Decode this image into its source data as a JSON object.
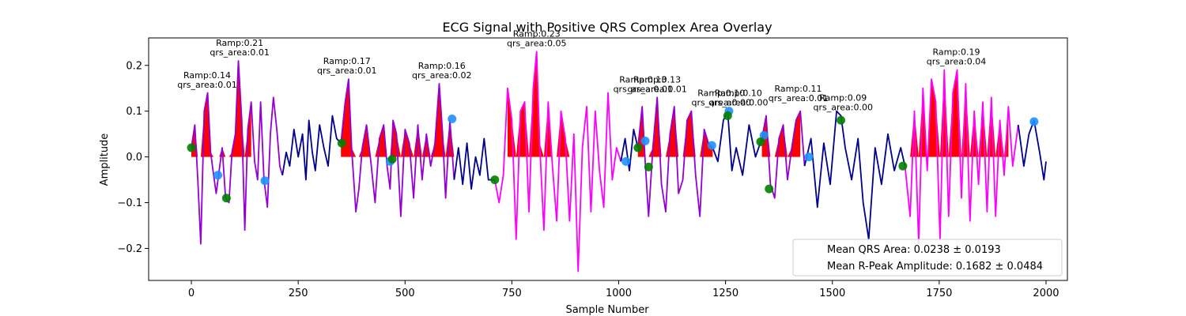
{
  "chart_data": {
    "type": "line",
    "title": "ECG Signal with Positive QRS Complex Area Overlay",
    "xlabel": "Sample Number",
    "ylabel": "Amplitude",
    "xlim": [
      -100,
      2050
    ],
    "ylim": [
      -0.27,
      0.26
    ],
    "xticks": [
      0,
      250,
      500,
      750,
      1000,
      1250,
      1500,
      1750,
      2000
    ],
    "xtick_labels": [
      "0",
      "250",
      "500",
      "750",
      "1000",
      "1250",
      "1500",
      "1750",
      "2000"
    ],
    "yticks": [
      -0.2,
      -0.1,
      0.0,
      0.1,
      0.2
    ],
    "ytick_labels": [
      "−0.2",
      "−0.1",
      "0.0",
      "0.1",
      "0.2"
    ],
    "grid": false,
    "colors": {
      "baseline_signal": "#00008b",
      "segment_a": "#9400d3",
      "segment_b": "#ff00ff",
      "qrs_fill": "#ff0000",
      "marker_blue": "#1e90ff",
      "marker_green": "#008000"
    },
    "segments": [
      {
        "color": "#9400d3",
        "fill_range": [
          0,
          140
        ],
        "x": [
          0,
          8,
          15,
          22,
          30,
          38,
          45,
          52,
          58,
          65,
          72,
          80,
          88,
          95,
          103,
          110,
          118,
          125,
          132,
          140,
          148,
          155,
          162,
          170,
          178,
          185,
          192,
          200,
          207,
          213
        ],
        "y": [
          0.02,
          0.07,
          -0.05,
          -0.19,
          0.1,
          0.14,
          0.01,
          -0.04,
          -0.08,
          -0.03,
          0.02,
          -0.09,
          -0.1,
          0.01,
          0.05,
          0.21,
          0.08,
          -0.16,
          0.06,
          0.12,
          -0.01,
          -0.05,
          0.12,
          -0.05,
          -0.11,
          0.05,
          0.13,
          0.06,
          -0.02,
          -0.04
        ]
      },
      {
        "color": "#00008b",
        "fill_range": null,
        "x": [
          213,
          222,
          230,
          240,
          250,
          260,
          268,
          275,
          283,
          290,
          300,
          310,
          320,
          330,
          340,
          350
        ],
        "y": [
          -0.04,
          0.01,
          -0.02,
          0.06,
          0.0,
          0.05,
          -0.05,
          0.08,
          0.01,
          -0.03,
          0.07,
          0.02,
          -0.02,
          0.09,
          0.04,
          0.03
        ]
      },
      {
        "color": "#9400d3",
        "fill_range": [
          350,
          690
        ],
        "x": [
          350,
          360,
          368,
          375,
          385,
          392,
          400,
          410,
          420,
          430,
          440,
          450,
          458,
          465,
          472,
          480,
          490,
          500,
          510,
          520,
          530,
          540,
          550,
          560,
          570,
          580,
          588,
          595,
          605,
          615
        ],
        "y": [
          0.03,
          0.12,
          0.17,
          0.02,
          -0.12,
          -0.07,
          0.02,
          0.07,
          -0.01,
          -0.1,
          0.04,
          0.07,
          -0.02,
          -0.07,
          0.08,
          0.05,
          -0.13,
          0.06,
          0.03,
          -0.09,
          0.07,
          -0.05,
          0.05,
          -0.02,
          0.03,
          0.16,
          0.05,
          -0.09,
          0.08,
          -0.05
        ]
      },
      {
        "color": "#00008b",
        "fill_range": null,
        "x": [
          615,
          625,
          635,
          645,
          655,
          665,
          675,
          685,
          695,
          710
        ],
        "y": [
          -0.05,
          0.02,
          -0.06,
          0.03,
          -0.07,
          0.0,
          -0.04,
          0.04,
          -0.05,
          -0.05
        ]
      },
      {
        "color": "#ff00ff",
        "fill_range": [
          740,
          890
        ],
        "x": [
          710,
          720,
          730,
          740,
          750,
          760,
          770,
          780,
          790,
          800,
          808,
          815,
          825,
          835,
          845,
          855,
          865,
          875,
          885,
          895,
          905,
          915,
          925,
          935,
          945,
          955,
          965,
          975,
          985,
          995,
          1005
        ],
        "y": [
          -0.05,
          -0.1,
          -0.04,
          0.15,
          0.08,
          -0.18,
          0.1,
          0.12,
          -0.12,
          0.15,
          0.23,
          0.03,
          -0.16,
          0.12,
          -0.02,
          -0.14,
          0.1,
          0.04,
          -0.14,
          0.05,
          -0.25,
          0.02,
          0.11,
          -0.12,
          0.1,
          -0.03,
          -0.11,
          0.14,
          -0.05,
          0.02,
          -0.01
        ]
      },
      {
        "color": "#00008b",
        "fill_range": null,
        "x": [
          1005,
          1015,
          1025,
          1035,
          1045
        ],
        "y": [
          -0.01,
          0.04,
          -0.03,
          0.06,
          0.02
        ]
      },
      {
        "color": "#9400d3",
        "fill_range": [
          1040,
          1220
        ],
        "x": [
          1045,
          1055,
          1062,
          1070,
          1080,
          1090,
          1100,
          1110,
          1120,
          1130,
          1140,
          1150,
          1160,
          1170,
          1180,
          1190,
          1200,
          1210,
          1220
        ],
        "y": [
          0.02,
          0.11,
          -0.01,
          -0.13,
          0.02,
          0.13,
          -0.06,
          -0.12,
          0.05,
          0.11,
          -0.08,
          -0.05,
          0.08,
          0.1,
          -0.04,
          -0.13,
          0.06,
          0.03,
          0.02
        ]
      },
      {
        "color": "#00008b",
        "fill_range": null,
        "x": [
          1220,
          1232,
          1245,
          1255,
          1265,
          1275,
          1290,
          1305,
          1320,
          1335
        ],
        "y": [
          0.02,
          -0.01,
          0.08,
          0.1,
          -0.03,
          0.02,
          -0.04,
          0.07,
          0.0,
          0.04
        ]
      },
      {
        "color": "#9400d3",
        "fill_range": [
          1335,
          1430
        ],
        "x": [
          1335,
          1345,
          1355,
          1365,
          1375,
          1385,
          1395,
          1405,
          1415,
          1425,
          1435
        ],
        "y": [
          0.04,
          0.09,
          -0.06,
          -0.09,
          0.04,
          0.07,
          -0.05,
          0.02,
          0.08,
          0.1,
          -0.02
        ]
      },
      {
        "color": "#00008b",
        "fill_range": null,
        "x": [
          1435,
          1450,
          1465,
          1480,
          1495,
          1510,
          1520,
          1530,
          1545,
          1560,
          1572,
          1585,
          1600,
          1615,
          1630,
          1645,
          1660,
          1670
        ],
        "y": [
          -0.02,
          0.04,
          -0.11,
          0.03,
          -0.06,
          0.1,
          0.09,
          0.02,
          -0.05,
          0.04,
          -0.1,
          -0.18,
          0.02,
          -0.06,
          0.05,
          -0.03,
          0.02,
          -0.02
        ]
      },
      {
        "color": "#ff00ff",
        "fill_range": [
          1680,
          1920
        ],
        "x": [
          1670,
          1682,
          1692,
          1702,
          1712,
          1722,
          1732,
          1742,
          1752,
          1762,
          1772,
          1782,
          1792,
          1802,
          1812,
          1822,
          1832,
          1842,
          1852,
          1862,
          1872,
          1882,
          1892,
          1902,
          1912,
          1922,
          1935
        ],
        "y": [
          -0.02,
          -0.13,
          0.1,
          -0.19,
          0.15,
          -0.03,
          0.17,
          0.12,
          -0.18,
          0.19,
          -0.13,
          0.14,
          0.19,
          -0.09,
          0.16,
          -0.14,
          0.1,
          -0.06,
          0.12,
          -0.12,
          0.13,
          -0.13,
          0.08,
          -0.04,
          0.11,
          -0.02,
          0.07
        ]
      },
      {
        "color": "#00008b",
        "fill_range": null,
        "x": [
          1935,
          1948,
          1960,
          1972,
          1985,
          1995,
          2000
        ],
        "y": [
          0.07,
          -0.02,
          0.05,
          0.08,
          0.01,
          -0.05,
          -0.01
        ]
      }
    ],
    "blue_markers": [
      {
        "x": 62,
        "y": -0.04
      },
      {
        "x": 172,
        "y": -0.052
      },
      {
        "x": 465,
        "y": -0.01
      },
      {
        "x": 610,
        "y": 0.083
      },
      {
        "x": 1017,
        "y": -0.01
      },
      {
        "x": 1062,
        "y": 0.035
      },
      {
        "x": 1218,
        "y": 0.025
      },
      {
        "x": 1258,
        "y": 0.1
      },
      {
        "x": 1340,
        "y": 0.047
      },
      {
        "x": 1445,
        "y": 0.0
      },
      {
        "x": 1972,
        "y": 0.077
      }
    ],
    "green_markers": [
      {
        "x": 0,
        "y": 0.02
      },
      {
        "x": 82,
        "y": -0.09
      },
      {
        "x": 352,
        "y": 0.03
      },
      {
        "x": 470,
        "y": -0.005
      },
      {
        "x": 710,
        "y": -0.05
      },
      {
        "x": 1045,
        "y": 0.02
      },
      {
        "x": 1070,
        "y": -0.022
      },
      {
        "x": 1255,
        "y": 0.09
      },
      {
        "x": 1332,
        "y": 0.033
      },
      {
        "x": 1352,
        "y": -0.07
      },
      {
        "x": 1520,
        "y": 0.08
      },
      {
        "x": 1665,
        "y": -0.02
      }
    ],
    "annotations": [
      {
        "x": 37,
        "y": 0.139,
        "ramp": "Ramp:0.14",
        "area": "qrs_area:0.01"
      },
      {
        "x": 113,
        "y": 0.21,
        "ramp": "Ramp:0.21",
        "area": "qrs_area:0.01"
      },
      {
        "x": 364,
        "y": 0.17,
        "ramp": "Ramp:0.17",
        "area": "qrs_area:0.01"
      },
      {
        "x": 586,
        "y": 0.16,
        "ramp": "Ramp:0.16",
        "area": "qrs_area:0.02"
      },
      {
        "x": 808,
        "y": 0.23,
        "ramp": "Ramp:0.23",
        "area": "qrs_area:0.05"
      },
      {
        "x": 1057,
        "y": 0.13,
        "ramp": "Ramp:0.13",
        "area": "qrs_area:0.01"
      },
      {
        "x": 1090,
        "y": 0.13,
        "ramp": "Ramp:0.13",
        "area": "qrs_area:0.01"
      },
      {
        "x": 1240,
        "y": 0.1,
        "ramp": "Ramp:0.10",
        "area": "qrs_area:0.00"
      },
      {
        "x": 1280,
        "y": 0.1,
        "ramp": "Ramp:0.10",
        "area": "qrs_area:0.00"
      },
      {
        "x": 1420,
        "y": 0.11,
        "ramp": "Ramp:0.11",
        "area": "qrs_area:0.01"
      },
      {
        "x": 1525,
        "y": 0.09,
        "ramp": "Ramp:0.09",
        "area": "qrs_area:0.00"
      },
      {
        "x": 1790,
        "y": 0.19,
        "ramp": "Ramp:0.19",
        "area": "qrs_area:0.04"
      }
    ],
    "legend": {
      "placement": "lower right",
      "entries": [
        "Mean QRS Area: 0.0238 ± 0.0193",
        "Mean R-Peak Amplitude: 0.1682 ± 0.0484"
      ]
    }
  }
}
